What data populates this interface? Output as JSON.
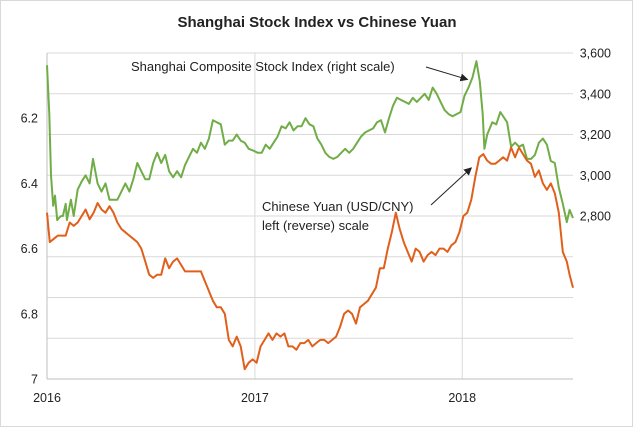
{
  "chart_data": {
    "type": "line",
    "title": "Shanghai Stock Index vs Chinese Yuan",
    "x_ticks": [
      "2016",
      "2017",
      "2018"
    ],
    "x_range": [
      "2016-01-01",
      "2018-07-15"
    ],
    "left_axis": {
      "ticks": [
        "6.2",
        "6.4",
        "6.6",
        "6.8",
        "7"
      ],
      "range": [
        6.0,
        7.0
      ],
      "reversed": true
    },
    "right_axis": {
      "ticks": [
        "2,800",
        "3,000",
        "3,200",
        "3,400",
        "3,600"
      ],
      "range": [
        2000,
        3600
      ]
    },
    "annotations": {
      "stock_label": "Shanghai Composite Stock Index (right scale)",
      "yuan_label_line1": "Chinese Yuan (USD/CNY)",
      "yuan_label_line2": "left (reverse) scale"
    },
    "colors": {
      "stock": "#70ad47",
      "yuan": "#e0601b",
      "grid": "#d9d9d9"
    },
    "grid": true,
    "series": [
      {
        "name": "Shanghai Composite Stock Index (right scale)",
        "color": "#70ad47",
        "axis": "right",
        "points": [
          [
            "2016-01-01",
            3540
          ],
          [
            "2016-01-05",
            3300
          ],
          [
            "2016-01-08",
            3000
          ],
          [
            "2016-01-12",
            2850
          ],
          [
            "2016-01-15",
            2900
          ],
          [
            "2016-01-19",
            2780
          ],
          [
            "2016-01-22",
            2790
          ],
          [
            "2016-01-26",
            2800
          ],
          [
            "2016-01-29",
            2800
          ],
          [
            "2016-02-03",
            2860
          ],
          [
            "2016-02-05",
            2780
          ],
          [
            "2016-02-12",
            2880
          ],
          [
            "2016-02-17",
            2800
          ],
          [
            "2016-02-24",
            2930
          ],
          [
            "2016-03-02",
            2970
          ],
          [
            "2016-03-09",
            3000
          ],
          [
            "2016-03-16",
            2960
          ],
          [
            "2016-03-22",
            3080
          ],
          [
            "2016-03-30",
            2960
          ],
          [
            "2016-04-06",
            2920
          ],
          [
            "2016-04-13",
            2960
          ],
          [
            "2016-04-20",
            2880
          ],
          [
            "2016-04-27",
            2880
          ],
          [
            "2016-05-04",
            2880
          ],
          [
            "2016-05-11",
            2920
          ],
          [
            "2016-05-18",
            2960
          ],
          [
            "2016-05-25",
            2920
          ],
          [
            "2016-06-01",
            2980
          ],
          [
            "2016-06-08",
            3060
          ],
          [
            "2016-06-15",
            3020
          ],
          [
            "2016-06-22",
            2980
          ],
          [
            "2016-06-29",
            2980
          ],
          [
            "2016-07-06",
            3060
          ],
          [
            "2016-07-13",
            3110
          ],
          [
            "2016-07-20",
            3060
          ],
          [
            "2016-07-27",
            3100
          ],
          [
            "2016-08-03",
            3020
          ],
          [
            "2016-08-10",
            2990
          ],
          [
            "2016-08-17",
            3020
          ],
          [
            "2016-08-24",
            2990
          ],
          [
            "2016-08-31",
            3050
          ],
          [
            "2016-09-07",
            3090
          ],
          [
            "2016-09-14",
            3130
          ],
          [
            "2016-09-21",
            3110
          ],
          [
            "2016-09-28",
            3160
          ],
          [
            "2016-10-05",
            3130
          ],
          [
            "2016-10-12",
            3180
          ],
          [
            "2016-10-19",
            3270
          ],
          [
            "2016-10-26",
            3260
          ],
          [
            "2016-11-02",
            3250
          ],
          [
            "2016-11-09",
            3150
          ],
          [
            "2016-11-16",
            3170
          ],
          [
            "2016-11-23",
            3170
          ],
          [
            "2016-11-30",
            3200
          ],
          [
            "2016-12-07",
            3170
          ],
          [
            "2016-12-14",
            3160
          ],
          [
            "2016-12-21",
            3130
          ],
          [
            "2016-12-30",
            3120
          ],
          [
            "2017-01-06",
            3110
          ],
          [
            "2017-01-13",
            3110
          ],
          [
            "2017-01-20",
            3150
          ],
          [
            "2017-01-27",
            3130
          ],
          [
            "2017-02-03",
            3160
          ],
          [
            "2017-02-10",
            3190
          ],
          [
            "2017-02-17",
            3240
          ],
          [
            "2017-02-24",
            3230
          ],
          [
            "2017-03-03",
            3260
          ],
          [
            "2017-03-10",
            3220
          ],
          [
            "2017-03-17",
            3240
          ],
          [
            "2017-03-24",
            3240
          ],
          [
            "2017-03-31",
            3280
          ],
          [
            "2017-04-07",
            3250
          ],
          [
            "2017-04-14",
            3240
          ],
          [
            "2017-04-21",
            3180
          ],
          [
            "2017-04-28",
            3150
          ],
          [
            "2017-05-05",
            3110
          ],
          [
            "2017-05-12",
            3090
          ],
          [
            "2017-05-19",
            3080
          ],
          [
            "2017-05-26",
            3090
          ],
          [
            "2017-06-02",
            3110
          ],
          [
            "2017-06-09",
            3130
          ],
          [
            "2017-06-16",
            3110
          ],
          [
            "2017-06-23",
            3130
          ],
          [
            "2017-06-30",
            3160
          ],
          [
            "2017-07-07",
            3190
          ],
          [
            "2017-07-14",
            3210
          ],
          [
            "2017-07-21",
            3220
          ],
          [
            "2017-07-28",
            3230
          ],
          [
            "2017-08-04",
            3260
          ],
          [
            "2017-08-11",
            3270
          ],
          [
            "2017-08-18",
            3210
          ],
          [
            "2017-08-25",
            3280
          ],
          [
            "2017-09-01",
            3340
          ],
          [
            "2017-09-08",
            3380
          ],
          [
            "2017-09-15",
            3370
          ],
          [
            "2017-09-22",
            3360
          ],
          [
            "2017-09-29",
            3350
          ],
          [
            "2017-10-06",
            3380
          ],
          [
            "2017-10-13",
            3360
          ],
          [
            "2017-10-20",
            3380
          ],
          [
            "2017-10-27",
            3400
          ],
          [
            "2017-11-03",
            3370
          ],
          [
            "2017-11-10",
            3430
          ],
          [
            "2017-11-17",
            3400
          ],
          [
            "2017-11-24",
            3360
          ],
          [
            "2017-12-01",
            3320
          ],
          [
            "2017-12-08",
            3300
          ],
          [
            "2017-12-15",
            3290
          ],
          [
            "2017-12-22",
            3300
          ],
          [
            "2017-12-29",
            3310
          ],
          [
            "2018-01-05",
            3390
          ],
          [
            "2018-01-12",
            3430
          ],
          [
            "2018-01-19",
            3480
          ],
          [
            "2018-01-26",
            3560
          ],
          [
            "2018-02-01",
            3460
          ],
          [
            "2018-02-06",
            3300
          ],
          [
            "2018-02-09",
            3130
          ],
          [
            "2018-02-14",
            3200
          ],
          [
            "2018-02-23",
            3260
          ],
          [
            "2018-03-02",
            3250
          ],
          [
            "2018-03-09",
            3310
          ],
          [
            "2018-03-14",
            3290
          ],
          [
            "2018-03-21",
            3260
          ],
          [
            "2018-03-28",
            3140
          ],
          [
            "2018-04-04",
            3160
          ],
          [
            "2018-04-11",
            3140
          ],
          [
            "2018-04-18",
            3150
          ],
          [
            "2018-04-25",
            3080
          ],
          [
            "2018-05-02",
            3080
          ],
          [
            "2018-05-09",
            3100
          ],
          [
            "2018-05-16",
            3160
          ],
          [
            "2018-05-23",
            3180
          ],
          [
            "2018-05-30",
            3150
          ],
          [
            "2018-06-06",
            3070
          ],
          [
            "2018-06-13",
            3060
          ],
          [
            "2018-06-20",
            2940
          ],
          [
            "2018-06-27",
            2860
          ],
          [
            "2018-07-04",
            2770
          ],
          [
            "2018-07-09",
            2830
          ],
          [
            "2018-07-15",
            2790
          ]
        ]
      },
      {
        "name": "Chinese Yuan (USD/CNY)",
        "color": "#e0601b",
        "axis": "left",
        "points": [
          [
            "2016-01-01",
            6.49
          ],
          [
            "2016-01-06",
            6.58
          ],
          [
            "2016-01-13",
            6.57
          ],
          [
            "2016-01-20",
            6.56
          ],
          [
            "2016-01-27",
            6.56
          ],
          [
            "2016-02-03",
            6.56
          ],
          [
            "2016-02-10",
            6.52
          ],
          [
            "2016-02-17",
            6.53
          ],
          [
            "2016-02-24",
            6.52
          ],
          [
            "2016-03-02",
            6.5
          ],
          [
            "2016-03-09",
            6.48
          ],
          [
            "2016-03-16",
            6.51
          ],
          [
            "2016-03-23",
            6.49
          ],
          [
            "2016-03-30",
            6.46
          ],
          [
            "2016-04-06",
            6.48
          ],
          [
            "2016-04-13",
            6.49
          ],
          [
            "2016-04-20",
            6.47
          ],
          [
            "2016-04-27",
            6.49
          ],
          [
            "2016-05-04",
            6.52
          ],
          [
            "2016-05-11",
            6.54
          ],
          [
            "2016-05-18",
            6.55
          ],
          [
            "2016-05-25",
            6.56
          ],
          [
            "2016-06-01",
            6.57
          ],
          [
            "2016-06-08",
            6.58
          ],
          [
            "2016-06-15",
            6.6
          ],
          [
            "2016-06-22",
            6.64
          ],
          [
            "2016-06-29",
            6.68
          ],
          [
            "2016-07-06",
            6.69
          ],
          [
            "2016-07-13",
            6.68
          ],
          [
            "2016-07-20",
            6.68
          ],
          [
            "2016-07-27",
            6.63
          ],
          [
            "2016-08-03",
            6.66
          ],
          [
            "2016-08-10",
            6.64
          ],
          [
            "2016-08-17",
            6.63
          ],
          [
            "2016-08-24",
            6.65
          ],
          [
            "2016-08-31",
            6.67
          ],
          [
            "2016-09-07",
            6.67
          ],
          [
            "2016-09-14",
            6.67
          ],
          [
            "2016-09-21",
            6.67
          ],
          [
            "2016-09-28",
            6.67
          ],
          [
            "2016-10-05",
            6.7
          ],
          [
            "2016-10-12",
            6.73
          ],
          [
            "2016-10-19",
            6.76
          ],
          [
            "2016-10-26",
            6.78
          ],
          [
            "2016-11-02",
            6.78
          ],
          [
            "2016-11-09",
            6.8
          ],
          [
            "2016-11-16",
            6.88
          ],
          [
            "2016-11-23",
            6.9
          ],
          [
            "2016-11-30",
            6.87
          ],
          [
            "2016-12-07",
            6.9
          ],
          [
            "2016-12-14",
            6.97
          ],
          [
            "2016-12-21",
            6.95
          ],
          [
            "2016-12-28",
            6.94
          ],
          [
            "2017-01-04",
            6.95
          ],
          [
            "2017-01-11",
            6.9
          ],
          [
            "2017-01-18",
            6.88
          ],
          [
            "2017-01-25",
            6.86
          ],
          [
            "2017-02-01",
            6.88
          ],
          [
            "2017-02-08",
            6.86
          ],
          [
            "2017-02-15",
            6.87
          ],
          [
            "2017-02-22",
            6.86
          ],
          [
            "2017-03-01",
            6.9
          ],
          [
            "2017-03-08",
            6.9
          ],
          [
            "2017-03-15",
            6.91
          ],
          [
            "2017-03-22",
            6.89
          ],
          [
            "2017-03-29",
            6.89
          ],
          [
            "2017-04-05",
            6.88
          ],
          [
            "2017-04-12",
            6.9
          ],
          [
            "2017-04-19",
            6.89
          ],
          [
            "2017-04-26",
            6.88
          ],
          [
            "2017-05-03",
            6.88
          ],
          [
            "2017-05-10",
            6.89
          ],
          [
            "2017-05-17",
            6.88
          ],
          [
            "2017-05-24",
            6.87
          ],
          [
            "2017-05-31",
            6.84
          ],
          [
            "2017-06-07",
            6.8
          ],
          [
            "2017-06-14",
            6.79
          ],
          [
            "2017-06-21",
            6.8
          ],
          [
            "2017-06-28",
            6.83
          ],
          [
            "2017-07-05",
            6.78
          ],
          [
            "2017-07-12",
            6.77
          ],
          [
            "2017-07-19",
            6.76
          ],
          [
            "2017-07-26",
            6.74
          ],
          [
            "2017-08-02",
            6.72
          ],
          [
            "2017-08-09",
            6.66
          ],
          [
            "2017-08-16",
            6.66
          ],
          [
            "2017-08-23",
            6.6
          ],
          [
            "2017-08-30",
            6.55
          ],
          [
            "2017-09-06",
            6.49
          ],
          [
            "2017-09-13",
            6.54
          ],
          [
            "2017-09-20",
            6.58
          ],
          [
            "2017-09-27",
            6.61
          ],
          [
            "2017-10-04",
            6.64
          ],
          [
            "2017-10-11",
            6.6
          ],
          [
            "2017-10-18",
            6.61
          ],
          [
            "2017-10-25",
            6.64
          ],
          [
            "2017-11-01",
            6.62
          ],
          [
            "2017-11-08",
            6.61
          ],
          [
            "2017-11-15",
            6.62
          ],
          [
            "2017-11-22",
            6.6
          ],
          [
            "2017-11-29",
            6.6
          ],
          [
            "2017-12-06",
            6.61
          ],
          [
            "2017-12-13",
            6.59
          ],
          [
            "2017-12-20",
            6.58
          ],
          [
            "2017-12-27",
            6.55
          ],
          [
            "2018-01-03",
            6.5
          ],
          [
            "2018-01-10",
            6.49
          ],
          [
            "2018-01-17",
            6.45
          ],
          [
            "2018-01-24",
            6.38
          ],
          [
            "2018-01-31",
            6.32
          ],
          [
            "2018-02-07",
            6.31
          ],
          [
            "2018-02-14",
            6.33
          ],
          [
            "2018-02-21",
            6.34
          ],
          [
            "2018-02-28",
            6.34
          ],
          [
            "2018-03-07",
            6.33
          ],
          [
            "2018-03-14",
            6.32
          ],
          [
            "2018-03-21",
            6.33
          ],
          [
            "2018-03-28",
            6.29
          ],
          [
            "2018-04-04",
            6.32
          ],
          [
            "2018-04-11",
            6.29
          ],
          [
            "2018-04-18",
            6.31
          ],
          [
            "2018-04-25",
            6.33
          ],
          [
            "2018-05-02",
            6.34
          ],
          [
            "2018-05-09",
            6.38
          ],
          [
            "2018-05-16",
            6.36
          ],
          [
            "2018-05-23",
            6.4
          ],
          [
            "2018-05-30",
            6.42
          ],
          [
            "2018-06-06",
            6.4
          ],
          [
            "2018-06-13",
            6.43
          ],
          [
            "2018-06-20",
            6.49
          ],
          [
            "2018-06-27",
            6.61
          ],
          [
            "2018-07-04",
            6.64
          ],
          [
            "2018-07-09",
            6.68
          ],
          [
            "2018-07-15",
            6.72
          ]
        ]
      }
    ]
  }
}
